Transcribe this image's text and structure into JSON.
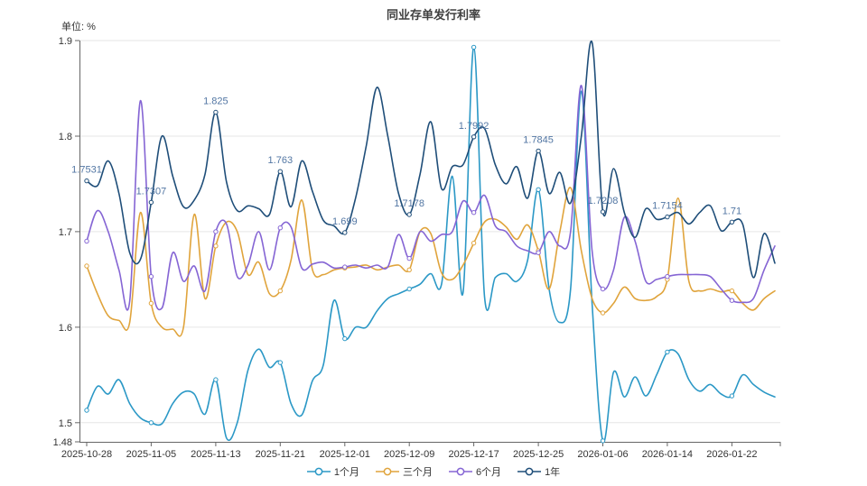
{
  "page": {
    "title": "同业存单发行利率",
    "unit_label": "单位: %"
  },
  "chart_data": {
    "type": "line",
    "title": "同业存单发行利率",
    "unit": "单位: %",
    "smooth": true,
    "grid": true,
    "legend_position": "bottom",
    "x_axis": {
      "type": "category",
      "num_points": 65,
      "tick_labels": [
        "2025-10-28",
        "2025-11-05",
        "2025-11-13",
        "2025-11-21",
        "2025-12-01",
        "2025-12-09",
        "2025-12-17",
        "2025-12-25",
        "2026-01-06",
        "2026-01-14",
        "2026-01-22"
      ],
      "tick_indices": [
        0,
        6,
        12,
        18,
        24,
        30,
        36,
        42,
        48,
        54,
        60
      ]
    },
    "y_axis": {
      "min": 1.48,
      "max": 1.9,
      "ticks": [
        {
          "value": 1.48,
          "label": "1.48"
        },
        {
          "value": 1.5,
          "label": "1.5"
        },
        {
          "value": 1.6,
          "label": "1.6"
        },
        {
          "value": 1.7,
          "label": "1.7"
        },
        {
          "value": 1.8,
          "label": "1.8"
        },
        {
          "value": 1.9,
          "label": "1.9"
        }
      ]
    },
    "colors": {
      "grid": "#e6e6e6",
      "axis": "#666666",
      "axis_label": "#333333",
      "annotation_text": "#5276a3"
    },
    "series": [
      {
        "name": "1个月",
        "color": "#2b98c6",
        "values": [
          1.513,
          1.538,
          1.53,
          1.545,
          1.52,
          1.505,
          1.5,
          1.499,
          1.52,
          1.532,
          1.53,
          1.509,
          1.545,
          1.484,
          1.5,
          1.555,
          1.577,
          1.558,
          1.563,
          1.52,
          1.508,
          1.544,
          1.56,
          1.628,
          1.588,
          1.6,
          1.6,
          1.617,
          1.63,
          1.635,
          1.64,
          1.645,
          1.656,
          1.645,
          1.758,
          1.636,
          1.893,
          1.632,
          1.652,
          1.656,
          1.648,
          1.67,
          1.744,
          1.64,
          1.605,
          1.64,
          1.847,
          1.625,
          1.481,
          1.553,
          1.527,
          1.548,
          1.528,
          1.55,
          1.574,
          1.572,
          1.545,
          1.533,
          1.54,
          1.53,
          1.528,
          1.55,
          1.54,
          1.532,
          1.527
        ]
      },
      {
        "name": "三个月",
        "color": "#e0a43c",
        "values": [
          1.664,
          1.635,
          1.612,
          1.607,
          1.605,
          1.72,
          1.625,
          1.6,
          1.598,
          1.6,
          1.718,
          1.63,
          1.685,
          1.71,
          1.7,
          1.655,
          1.668,
          1.635,
          1.638,
          1.67,
          1.733,
          1.66,
          1.655,
          1.66,
          1.662,
          1.663,
          1.665,
          1.66,
          1.663,
          1.665,
          1.66,
          1.7,
          1.698,
          1.657,
          1.65,
          1.665,
          1.688,
          1.71,
          1.713,
          1.705,
          1.692,
          1.707,
          1.68,
          1.64,
          1.7,
          1.746,
          1.68,
          1.63,
          1.615,
          1.625,
          1.642,
          1.63,
          1.628,
          1.632,
          1.65,
          1.735,
          1.648,
          1.638,
          1.64,
          1.637,
          1.638,
          1.625,
          1.618,
          1.63,
          1.638
        ]
      },
      {
        "name": "6个月",
        "color": "#8565d4",
        "values": [
          1.69,
          1.722,
          1.7,
          1.66,
          1.627,
          1.837,
          1.653,
          1.62,
          1.678,
          1.648,
          1.664,
          1.638,
          1.7,
          1.708,
          1.653,
          1.665,
          1.7,
          1.66,
          1.704,
          1.705,
          1.662,
          1.666,
          1.668,
          1.662,
          1.663,
          1.665,
          1.662,
          1.665,
          1.663,
          1.697,
          1.672,
          1.7,
          1.69,
          1.697,
          1.7,
          1.732,
          1.72,
          1.738,
          1.706,
          1.7,
          1.685,
          1.68,
          1.678,
          1.7,
          1.685,
          1.7,
          1.853,
          1.68,
          1.64,
          1.66,
          1.715,
          1.69,
          1.648,
          1.65,
          1.653,
          1.655,
          1.655,
          1.655,
          1.653,
          1.64,
          1.628,
          1.626,
          1.63,
          1.66,
          1.685
        ]
      },
      {
        "name": "1年",
        "color": "#1f4e79",
        "values": [
          1.7531,
          1.748,
          1.774,
          1.74,
          1.678,
          1.671,
          1.7307,
          1.8,
          1.758,
          1.726,
          1.733,
          1.76,
          1.825,
          1.752,
          1.722,
          1.727,
          1.724,
          1.718,
          1.763,
          1.726,
          1.774,
          1.742,
          1.712,
          1.706,
          1.699,
          1.735,
          1.79,
          1.851,
          1.8,
          1.74,
          1.7178,
          1.76,
          1.815,
          1.745,
          1.768,
          1.77,
          1.7992,
          1.808,
          1.77,
          1.75,
          1.768,
          1.735,
          1.7845,
          1.74,
          1.762,
          1.73,
          1.8,
          1.898,
          1.7208,
          1.766,
          1.72,
          1.694,
          1.724,
          1.713,
          1.7154,
          1.72,
          1.708,
          1.72,
          1.727,
          1.701,
          1.71,
          1.708,
          1.652,
          1.698,
          1.667
        ],
        "point_labels": [
          {
            "index": 0,
            "text": "1.7531"
          },
          {
            "index": 6,
            "text": "1.7307"
          },
          {
            "index": 12,
            "text": "1.825"
          },
          {
            "index": 18,
            "text": "1.763"
          },
          {
            "index": 24,
            "text": "1.699"
          },
          {
            "index": 30,
            "text": "1.7178"
          },
          {
            "index": 36,
            "text": "1.7992"
          },
          {
            "index": 42,
            "text": "1.7845"
          },
          {
            "index": 48,
            "text": "1.7208"
          },
          {
            "index": 54,
            "text": "1.7154"
          },
          {
            "index": 60,
            "text": "1.71"
          }
        ]
      }
    ]
  }
}
